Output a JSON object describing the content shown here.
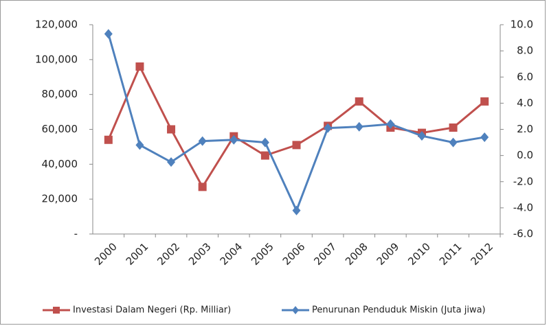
{
  "chart_data": {
    "type": "line",
    "categories": [
      "2000",
      "2001",
      "2002",
      "2003",
      "2004",
      "2005",
      "2006",
      "2007",
      "2008",
      "2009",
      "2010",
      "2011",
      "2012"
    ],
    "series": [
      {
        "name": "Investasi Dalam Negeri (Rp. Milliar)",
        "color": "#c0504d",
        "marker": "square",
        "values": [
          54000,
          96000,
          60000,
          27000,
          56000,
          45000,
          51000,
          62000,
          76000,
          61000,
          58000,
          61000,
          76000
        ]
      },
      {
        "name": "Penurunan Penduduk Miskin (Juta jiwa)",
        "color": "#4f81bd",
        "marker": "diamond",
        "axis": "y2",
        "values": [
          9.3,
          0.8,
          -0.5,
          1.1,
          1.2,
          1.0,
          -4.2,
          2.1,
          2.2,
          2.4,
          1.5,
          1.0,
          1.4
        ]
      }
    ],
    "ylim": [
      0,
      120000
    ],
    "yticks": [
      {
        "value": 0,
        "label": "-"
      },
      {
        "value": 20000,
        "label": "20,000"
      },
      {
        "value": 40000,
        "label": "40,000"
      },
      {
        "value": 60000,
        "label": "60,000"
      },
      {
        "value": 80000,
        "label": "80,000"
      },
      {
        "value": 100000,
        "label": "100,000"
      },
      {
        "value": 120000,
        "label": "120,000"
      }
    ],
    "y2lim": [
      -6,
      10
    ],
    "y2ticks": [
      {
        "value": -6,
        "label": "-6.0"
      },
      {
        "value": -4,
        "label": "-4.0"
      },
      {
        "value": -2,
        "label": "-2.0"
      },
      {
        "value": 0,
        "label": "0.0"
      },
      {
        "value": 2,
        "label": "2.0"
      },
      {
        "value": 4,
        "label": "4.0"
      },
      {
        "value": 6,
        "label": "6.0"
      },
      {
        "value": 8,
        "label": "8.0"
      },
      {
        "value": 10,
        "label": "10.0"
      }
    ],
    "legend": "bottom"
  }
}
